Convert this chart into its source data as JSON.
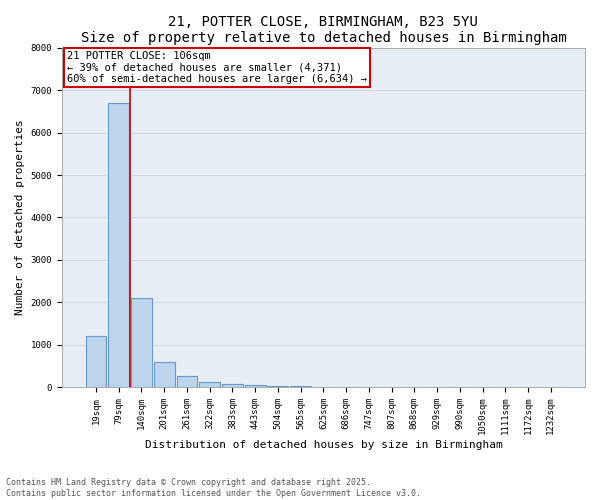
{
  "title_line1": "21, POTTER CLOSE, BIRMINGHAM, B23 5YU",
  "title_line2": "Size of property relative to detached houses in Birmingham",
  "xlabel": "Distribution of detached houses by size in Birmingham",
  "ylabel": "Number of detached properties",
  "categories": [
    "19sqm",
    "79sqm",
    "140sqm",
    "201sqm",
    "261sqm",
    "322sqm",
    "383sqm",
    "443sqm",
    "504sqm",
    "565sqm",
    "625sqm",
    "686sqm",
    "747sqm",
    "807sqm",
    "868sqm",
    "929sqm",
    "990sqm",
    "1050sqm",
    "1111sqm",
    "1172sqm",
    "1232sqm"
  ],
  "values": [
    1200,
    6700,
    2100,
    590,
    270,
    130,
    75,
    40,
    25,
    15,
    8,
    4,
    2,
    1,
    1,
    0,
    0,
    0,
    0,
    0,
    0
  ],
  "bar_color": "#bdd4ea",
  "bar_edge_color": "#6699cc",
  "vline_color": "#cc0000",
  "annotation_text": "21 POTTER CLOSE: 106sqm\n← 39% of detached houses are smaller (4,371)\n60% of semi-detached houses are larger (6,634) →",
  "annotation_box_edgecolor": "#cc0000",
  "ylim": [
    0,
    8000
  ],
  "yticks": [
    0,
    1000,
    2000,
    3000,
    4000,
    5000,
    6000,
    7000,
    8000
  ],
  "grid_color": "#d0d8e4",
  "bg_color": "#e8eef6",
  "footer_line1": "Contains HM Land Registry data © Crown copyright and database right 2025.",
  "footer_line2": "Contains public sector information licensed under the Open Government Licence v3.0.",
  "title_fontsize": 10,
  "axis_label_fontsize": 8,
  "annotation_fontsize": 7.5,
  "tick_fontsize": 6.5,
  "footer_fontsize": 6
}
